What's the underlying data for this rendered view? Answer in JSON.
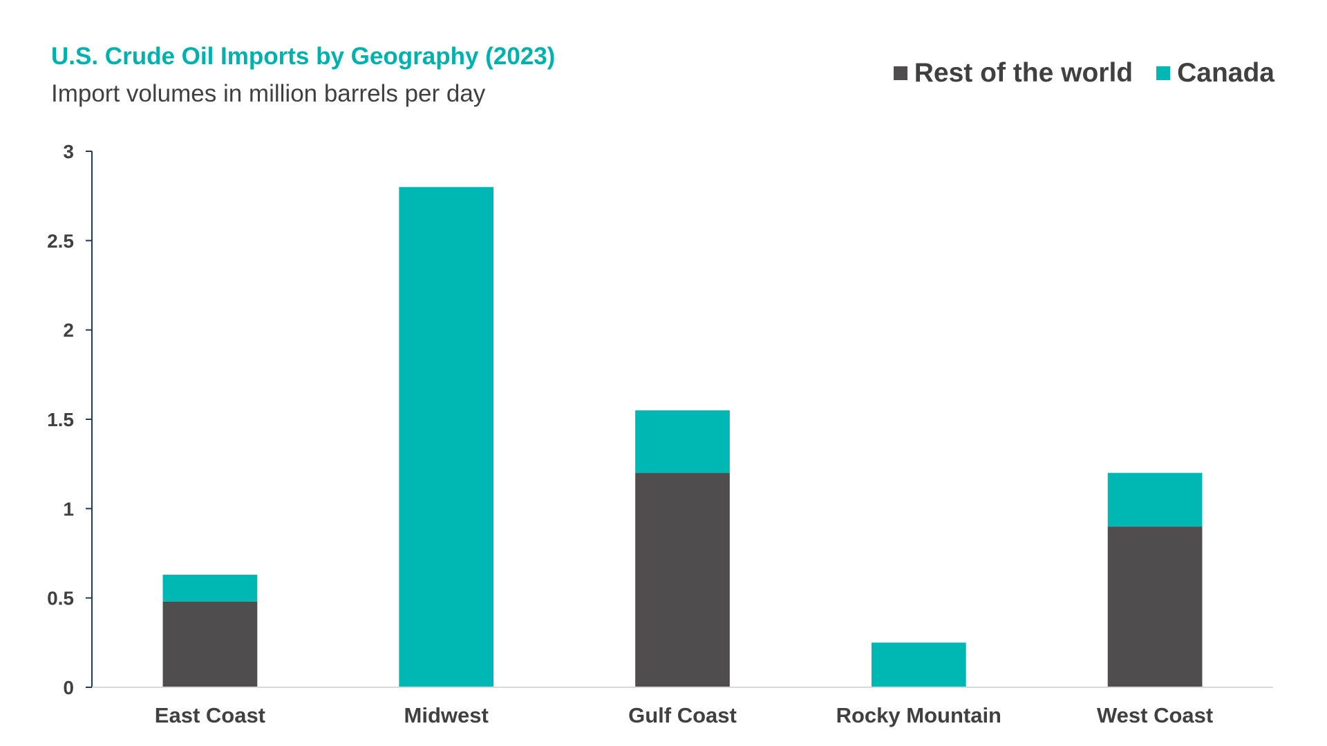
{
  "chart_data": {
    "type": "bar",
    "stacked": true,
    "title": "U.S. Crude Oil Imports by Geography (2023)",
    "subtitle": "Import volumes in million barrels per day",
    "categories": [
      "East Coast",
      "Midwest",
      "Gulf Coast",
      "Rocky Mountain",
      "West Coast"
    ],
    "series": [
      {
        "name": "Rest of the world",
        "values": [
          0.48,
          0,
          1.2,
          0,
          0.9
        ],
        "color": "#4F4D4E"
      },
      {
        "name": "Canada",
        "values": [
          0.15,
          2.8,
          0.35,
          0.25,
          0.3
        ],
        "color": "#00B8B3"
      }
    ],
    "ylim": [
      0,
      3
    ],
    "yticks": [
      0,
      0.5,
      1,
      1.5,
      2,
      2.5,
      3
    ],
    "ytick_labels": [
      "0",
      "0.5",
      "1",
      "1.5",
      "2",
      "2.5",
      "3"
    ],
    "grid": false,
    "legend_position": "top-right"
  }
}
